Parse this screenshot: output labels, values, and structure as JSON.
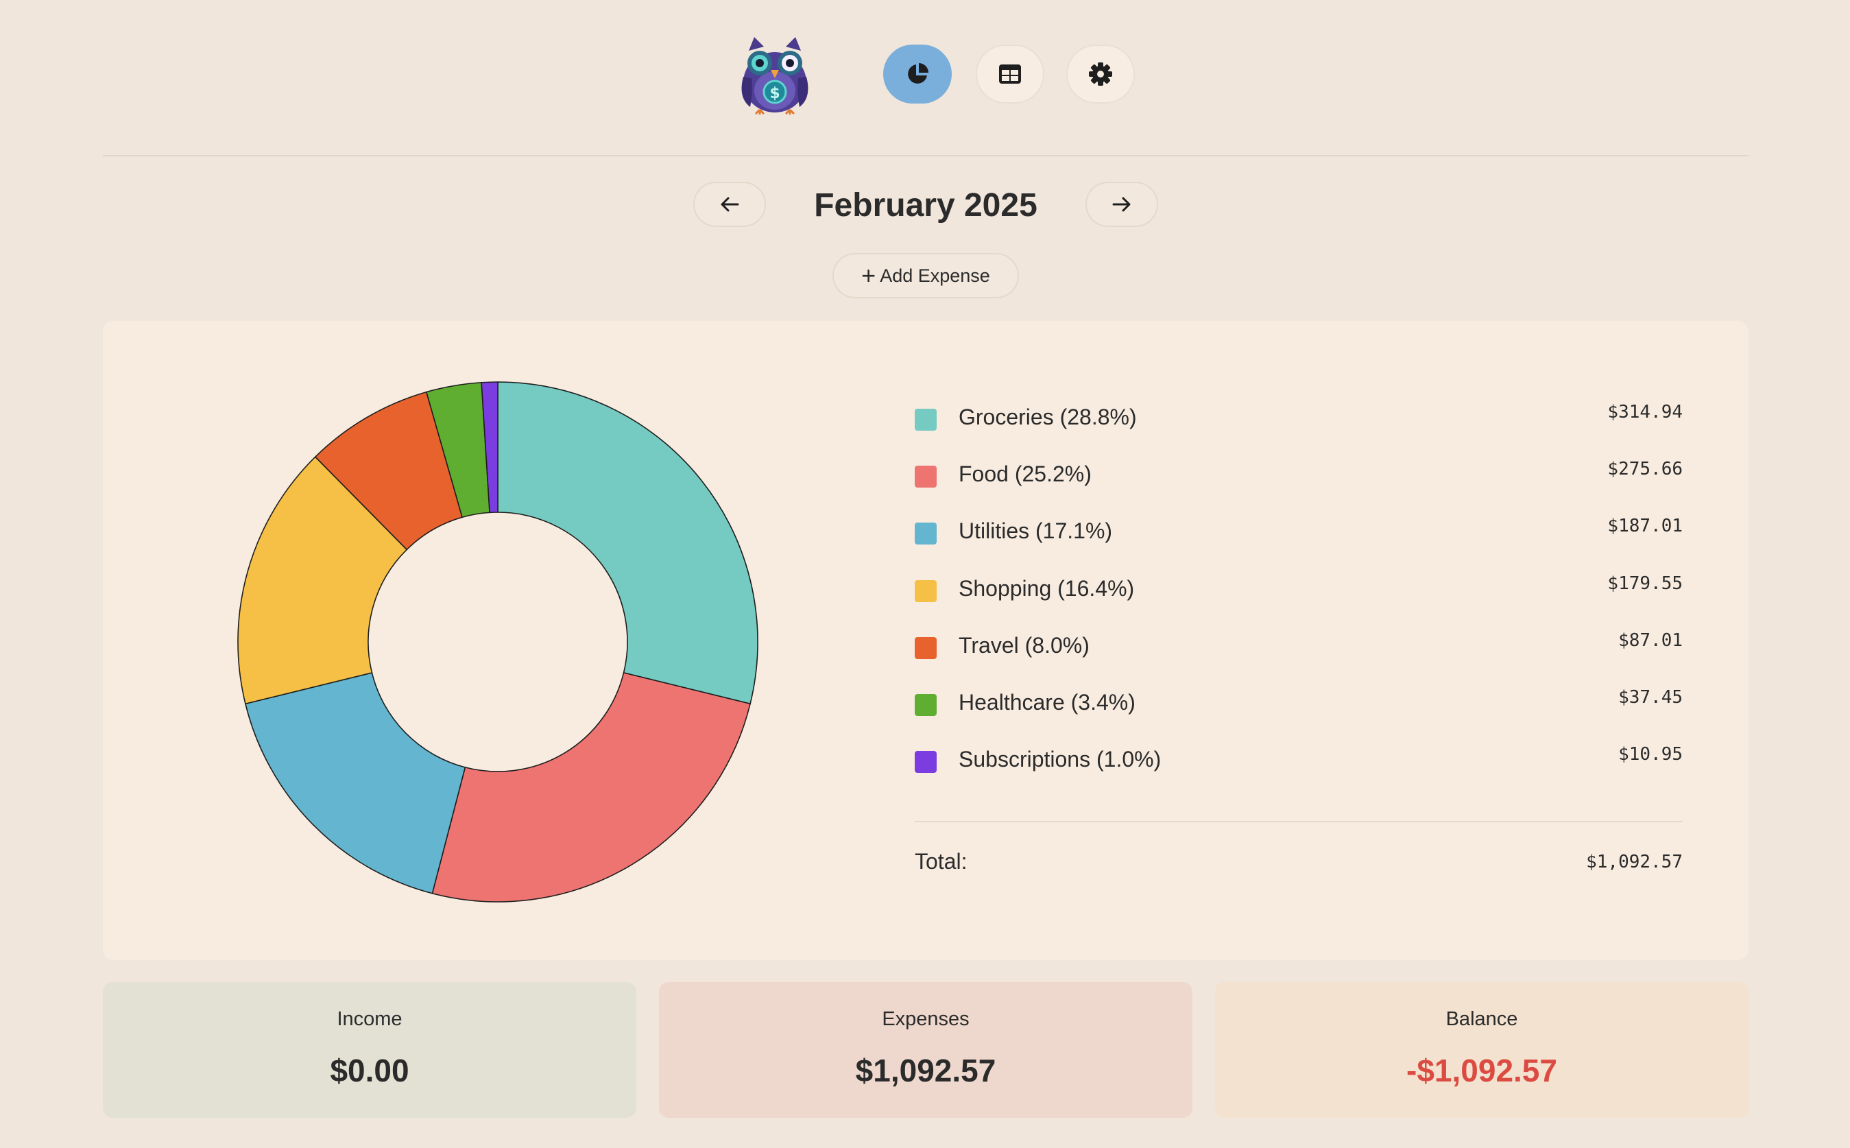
{
  "header": {
    "logo_name": "owl-money-logo",
    "nav": [
      {
        "name": "chart-view",
        "icon": "pie-chart-icon",
        "active": true
      },
      {
        "name": "table-view",
        "icon": "table-icon",
        "active": false
      },
      {
        "name": "settings",
        "icon": "gear-icon",
        "active": false
      }
    ]
  },
  "month_nav": {
    "prev_icon": "arrow-left-icon",
    "title": "February 2025",
    "next_icon": "arrow-right-icon"
  },
  "add_expense": {
    "plus": "+",
    "label": "Add Expense"
  },
  "chart_data": {
    "type": "pie",
    "subtype": "donut",
    "categories": [
      "Groceries",
      "Food",
      "Utilities",
      "Shopping",
      "Travel",
      "Healthcare",
      "Subscriptions"
    ],
    "values": [
      314.94,
      275.66,
      187.01,
      179.55,
      87.01,
      37.45,
      10.95
    ],
    "percents": [
      28.8,
      25.2,
      17.1,
      16.4,
      8.0,
      3.4,
      1.0
    ],
    "colors": [
      "#75cac2",
      "#ee7472",
      "#64b5d0",
      "#f5c045",
      "#e8622d",
      "#5fae32",
      "#7b3ce0"
    ]
  },
  "legend": {
    "items": [
      {
        "label": "Groceries (28.8%)",
        "amount": "$314.94",
        "color": "#75cac2"
      },
      {
        "label": "Food (25.2%)",
        "amount": "$275.66",
        "color": "#ee7472"
      },
      {
        "label": "Utilities (17.1%)",
        "amount": "$187.01",
        "color": "#64b5d0"
      },
      {
        "label": "Shopping (16.4%)",
        "amount": "$179.55",
        "color": "#f5c045"
      },
      {
        "label": "Travel (8.0%)",
        "amount": "$87.01",
        "color": "#e8622d"
      },
      {
        "label": "Healthcare (3.4%)",
        "amount": "$37.45",
        "color": "#5fae32"
      },
      {
        "label": "Subscriptions (1.0%)",
        "amount": "$10.95",
        "color": "#7b3ce0"
      }
    ],
    "total_label": "Total:",
    "total_value": "$1,092.57"
  },
  "summary": {
    "income": {
      "title": "Income",
      "value": "$0.00",
      "bg": "#e2e1d3"
    },
    "expenses": {
      "title": "Expenses",
      "value": "$1,092.57",
      "bg": "#eed8cd"
    },
    "balance": {
      "title": "Balance",
      "value": "-$1,092.57",
      "bg": "#f3e2cf",
      "value_color": "#dc4b42"
    }
  }
}
